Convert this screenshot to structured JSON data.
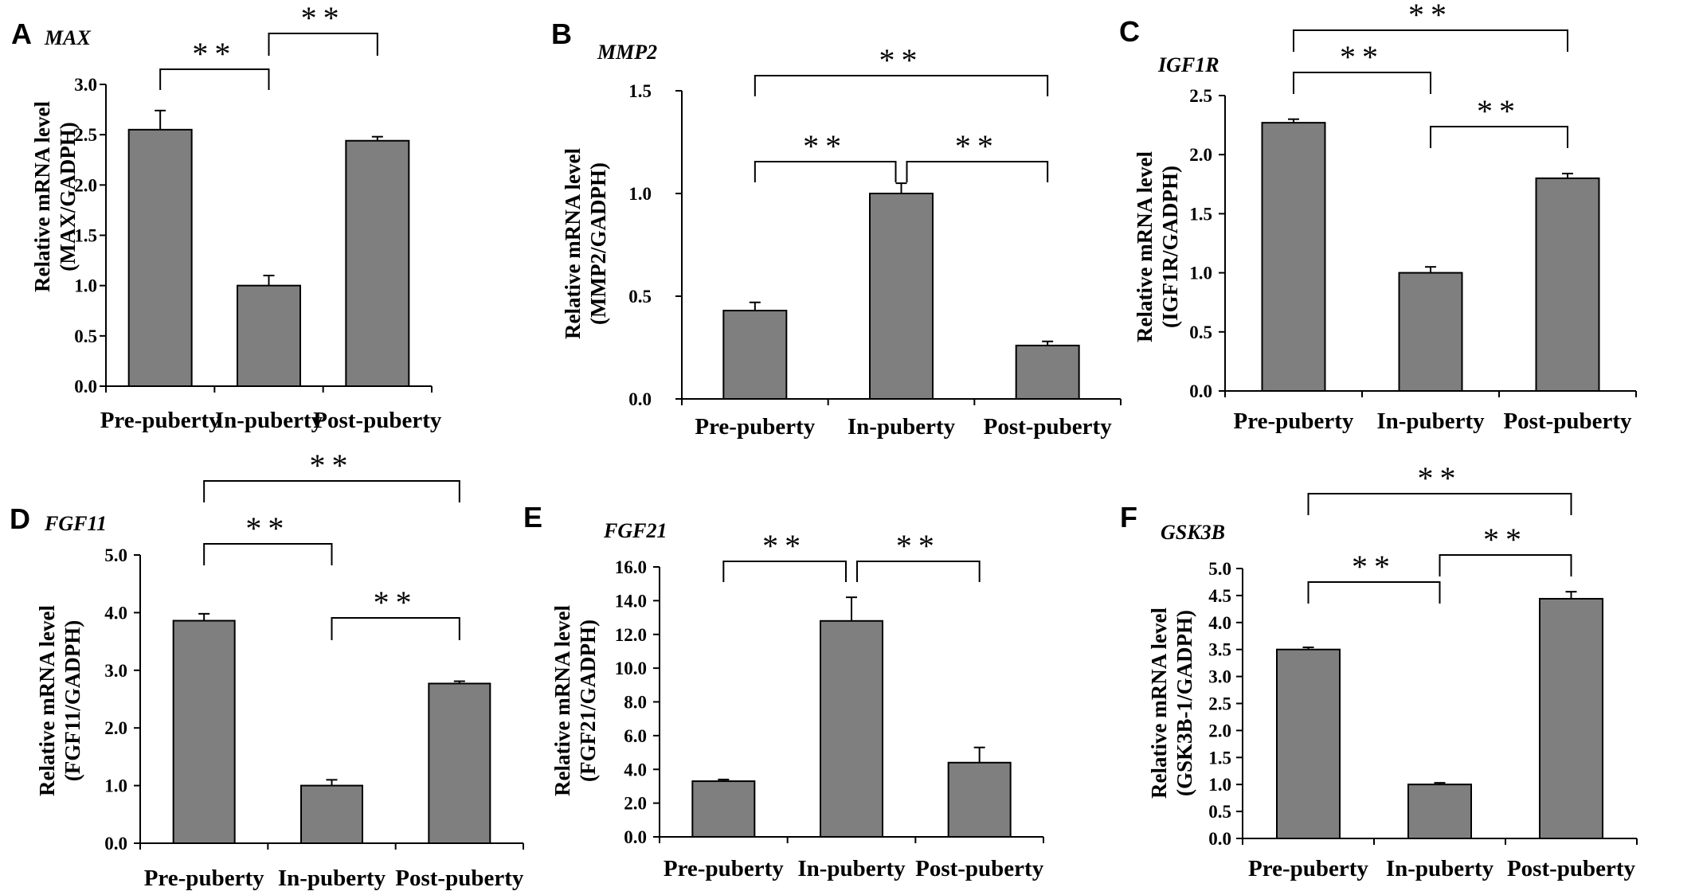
{
  "figure": {
    "background": "#ffffff",
    "bar_color": "#7f7f7f"
  },
  "chart_data": [
    {
      "panel": "A",
      "type": "bar",
      "title": "MAX",
      "categories": [
        "Pre-puberty",
        "In-puberty",
        "Post-puberty"
      ],
      "values": [
        2.55,
        1.0,
        2.44
      ],
      "errors": [
        0.19,
        0.1,
        0.04
      ],
      "ylabel_line1": "Relative mRNA level",
      "ylabel_line2": "(MAX/GADPH)",
      "ylim": [
        0,
        3.0
      ],
      "yticks": [
        "0.0",
        "0.5",
        "1.0",
        "1.5",
        "2.0",
        "2.5",
        "3.0"
      ],
      "significance": [
        {
          "from": 0,
          "to": 1,
          "label": "**"
        },
        {
          "from": 1,
          "to": 2,
          "label": "**"
        }
      ]
    },
    {
      "panel": "B",
      "type": "bar",
      "title": "MMP2",
      "categories": [
        "Pre-puberty",
        "In-puberty",
        "Post-puberty"
      ],
      "values": [
        0.43,
        1.0,
        0.26
      ],
      "errors": [
        0.04,
        0.05,
        0.02
      ],
      "ylabel_line1": "Relative mRNA level",
      "ylabel_line2": "(MMP2/GADPH)",
      "ylim": [
        0,
        1.5
      ],
      "yticks": [
        "0.0",
        "0.5",
        "1.0",
        "1.5"
      ],
      "significance": [
        {
          "from": 0,
          "to": 2,
          "label": "**"
        },
        {
          "from": 0,
          "to": 1,
          "label": "**"
        },
        {
          "from": 1,
          "to": 2,
          "label": "**"
        }
      ]
    },
    {
      "panel": "C",
      "type": "bar",
      "title": "IGF1R",
      "categories": [
        "Pre-puberty",
        "In-puberty",
        "Post-puberty"
      ],
      "values": [
        2.27,
        1.0,
        1.8
      ],
      "errors": [
        0.03,
        0.05,
        0.04
      ],
      "ylabel_line1": "Relative mRNA level",
      "ylabel_line2": "(IGF1R/GADPH)",
      "ylim": [
        0,
        2.5
      ],
      "yticks": [
        "0.0",
        "0.5",
        "1.0",
        "1.5",
        "2.0",
        "2.5"
      ],
      "significance": [
        {
          "from": 0,
          "to": 2,
          "label": "**"
        },
        {
          "from": 0,
          "to": 1,
          "label": "**"
        },
        {
          "from": 1,
          "to": 2,
          "label": "**"
        }
      ]
    },
    {
      "panel": "D",
      "type": "bar",
      "title": "FGF11",
      "categories": [
        "Pre-puberty",
        "In-puberty",
        "Post-puberty"
      ],
      "values": [
        3.86,
        1.0,
        2.77
      ],
      "errors": [
        0.12,
        0.1,
        0.04
      ],
      "ylabel_line1": "Relative mRNA level",
      "ylabel_line2": "(FGF11/GADPH)",
      "ylim": [
        0,
        5.0
      ],
      "yticks": [
        "0.0",
        "1.0",
        "2.0",
        "3.0",
        "4.0",
        "5.0"
      ],
      "significance": [
        {
          "from": 0,
          "to": 2,
          "label": "**"
        },
        {
          "from": 0,
          "to": 1,
          "label": "**"
        },
        {
          "from": 1,
          "to": 2,
          "label": "**"
        }
      ]
    },
    {
      "panel": "E",
      "type": "bar",
      "title": "FGF21",
      "categories": [
        "Pre-puberty",
        "In-puberty",
        "Post-puberty"
      ],
      "values": [
        3.3,
        12.8,
        4.4
      ],
      "errors": [
        0.1,
        1.4,
        0.9
      ],
      "ylabel_line1": "Relative mRNA level",
      "ylabel_line2": "(FGF21/GADPH)",
      "ylim": [
        0,
        16.0
      ],
      "yticks": [
        "0.0",
        "2.0",
        "4.0",
        "6.0",
        "8.0",
        "10.0",
        "12.0",
        "14.0",
        "16.0"
      ],
      "significance": [
        {
          "from": 0,
          "to": 1,
          "label": "**"
        },
        {
          "from": 1,
          "to": 2,
          "label": "**"
        }
      ]
    },
    {
      "panel": "F",
      "type": "bar",
      "title": "GSK3B",
      "categories": [
        "Pre-puberty",
        "In-puberty",
        "Post-puberty"
      ],
      "values": [
        3.5,
        1.0,
        4.44
      ],
      "errors": [
        0.04,
        0.03,
        0.13
      ],
      "ylabel_line1": "Relative mRNA level",
      "ylabel_line2": "(GSK3B-1/GADPH)",
      "ylim": [
        0,
        5.0
      ],
      "yticks": [
        "0.0",
        "0.5",
        "1.0",
        "1.5",
        "2.0",
        "2.5",
        "3.0",
        "3.5",
        "4.0",
        "4.5",
        "5.0"
      ],
      "significance": [
        {
          "from": 0,
          "to": 2,
          "label": "**"
        },
        {
          "from": 0,
          "to": 1,
          "label": "**"
        },
        {
          "from": 1,
          "to": 2,
          "label": "**"
        }
      ]
    }
  ]
}
